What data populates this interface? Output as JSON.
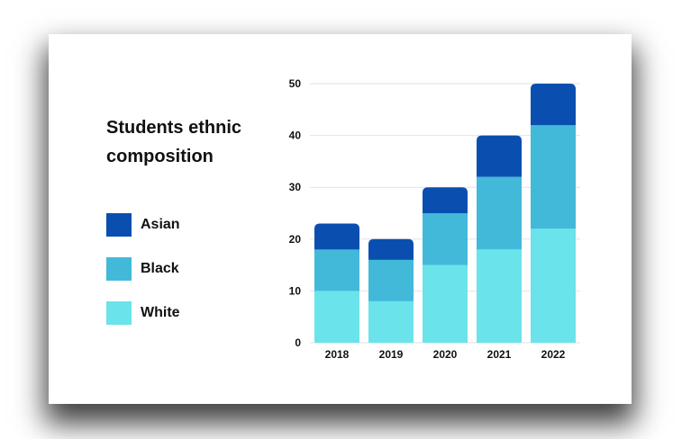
{
  "chart_data": {
    "type": "bar",
    "stacked": true,
    "title": "Students ethnic composition",
    "categories": [
      "2018",
      "2019",
      "2020",
      "2021",
      "2022"
    ],
    "series": [
      {
        "name": "White",
        "values": [
          10,
          8,
          15,
          18,
          22
        ],
        "color": "#6ae3ea"
      },
      {
        "name": "Black",
        "values": [
          8,
          8,
          10,
          14,
          20
        ],
        "color": "#42b9d9"
      },
      {
        "name": "Asian",
        "values": [
          5,
          4,
          5,
          8,
          8
        ],
        "color": "#0a4faf"
      }
    ],
    "ylim": [
      0,
      50
    ],
    "yticks": [
      "0",
      "10",
      "20",
      "30",
      "40",
      "50"
    ],
    "grid": true,
    "legend": "left"
  }
}
